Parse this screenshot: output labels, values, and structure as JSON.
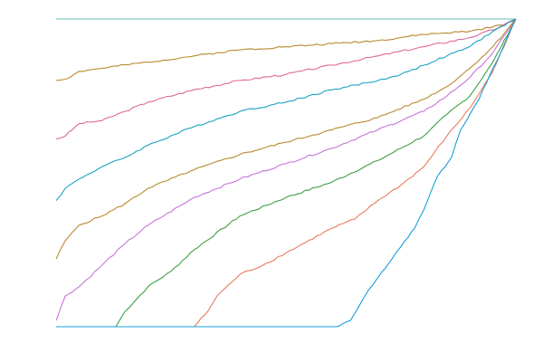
{
  "chart_data": {
    "type": "line",
    "title": "",
    "xlabel": "",
    "ylabel": "",
    "grid": false,
    "legend": "none",
    "xlim": [
      0,
      1
    ],
    "ylim": [
      0,
      1
    ],
    "series": [
      {
        "color": "#64BCB4",
        "points": [
          [
            0,
            1
          ],
          [
            0.25,
            1
          ],
          [
            0.5,
            1
          ],
          [
            0.75,
            1
          ],
          [
            0.98,
            1
          ],
          [
            1,
            1
          ]
        ]
      },
      {
        "color": "#B9892F",
        "points": [
          [
            0,
            0.8
          ],
          [
            0.03,
            0.81
          ],
          [
            0.05,
            0.83
          ],
          [
            0.1,
            0.84
          ],
          [
            0.2,
            0.86
          ],
          [
            0.3,
            0.88
          ],
          [
            0.4,
            0.9
          ],
          [
            0.5,
            0.91
          ],
          [
            0.6,
            0.92
          ],
          [
            0.7,
            0.93
          ],
          [
            0.8,
            0.95
          ],
          [
            0.9,
            0.96
          ],
          [
            0.97,
            0.98
          ],
          [
            1,
            1
          ]
        ]
      },
      {
        "color": "#E0679A",
        "points": [
          [
            0,
            0.61
          ],
          [
            0.02,
            0.62
          ],
          [
            0.05,
            0.66
          ],
          [
            0.1,
            0.67
          ],
          [
            0.15,
            0.7
          ],
          [
            0.2,
            0.73
          ],
          [
            0.3,
            0.77
          ],
          [
            0.4,
            0.8
          ],
          [
            0.5,
            0.82
          ],
          [
            0.6,
            0.85
          ],
          [
            0.7,
            0.88
          ],
          [
            0.8,
            0.91
          ],
          [
            0.9,
            0.94
          ],
          [
            0.96,
            0.97
          ],
          [
            1,
            1
          ]
        ]
      },
      {
        "color": "#19A2C2",
        "points": [
          [
            0,
            0.41
          ],
          [
            0.02,
            0.45
          ],
          [
            0.05,
            0.48
          ],
          [
            0.1,
            0.52
          ],
          [
            0.15,
            0.55
          ],
          [
            0.2,
            0.59
          ],
          [
            0.3,
            0.65
          ],
          [
            0.4,
            0.7
          ],
          [
            0.5,
            0.73
          ],
          [
            0.6,
            0.77
          ],
          [
            0.7,
            0.8
          ],
          [
            0.75,
            0.82
          ],
          [
            0.8,
            0.85
          ],
          [
            0.85,
            0.88
          ],
          [
            0.9,
            0.91
          ],
          [
            0.95,
            0.96
          ],
          [
            1,
            1
          ]
        ]
      },
      {
        "color": "#B9892F",
        "points": [
          [
            0,
            0.22
          ],
          [
            0.02,
            0.28
          ],
          [
            0.05,
            0.33
          ],
          [
            0.1,
            0.36
          ],
          [
            0.15,
            0.4
          ],
          [
            0.2,
            0.45
          ],
          [
            0.3,
            0.51
          ],
          [
            0.4,
            0.56
          ],
          [
            0.5,
            0.6
          ],
          [
            0.6,
            0.64
          ],
          [
            0.7,
            0.68
          ],
          [
            0.8,
            0.74
          ],
          [
            0.85,
            0.78
          ],
          [
            0.9,
            0.84
          ],
          [
            0.95,
            0.91
          ],
          [
            1,
            1
          ]
        ]
      },
      {
        "color": "#C674DA",
        "points": [
          [
            0,
            0.02
          ],
          [
            0.02,
            0.1
          ],
          [
            0.05,
            0.13
          ],
          [
            0.1,
            0.2
          ],
          [
            0.15,
            0.27
          ],
          [
            0.2,
            0.33
          ],
          [
            0.3,
            0.42
          ],
          [
            0.4,
            0.48
          ],
          [
            0.5,
            0.53
          ],
          [
            0.6,
            0.58
          ],
          [
            0.7,
            0.64
          ],
          [
            0.8,
            0.7
          ],
          [
            0.85,
            0.75
          ],
          [
            0.9,
            0.81
          ],
          [
            0.95,
            0.89
          ],
          [
            1,
            1
          ]
        ]
      },
      {
        "color": "#3BA047",
        "points": [
          [
            0,
            0
          ],
          [
            0.13,
            0
          ],
          [
            0.15,
            0.05
          ],
          [
            0.2,
            0.13
          ],
          [
            0.25,
            0.18
          ],
          [
            0.3,
            0.25
          ],
          [
            0.4,
            0.36
          ],
          [
            0.5,
            0.42
          ],
          [
            0.6,
            0.47
          ],
          [
            0.7,
            0.54
          ],
          [
            0.8,
            0.62
          ],
          [
            0.85,
            0.69
          ],
          [
            0.9,
            0.75
          ],
          [
            0.95,
            0.86
          ],
          [
            1,
            1
          ]
        ]
      },
      {
        "color": "#EA7A5E",
        "points": [
          [
            0,
            0
          ],
          [
            0.3,
            0
          ],
          [
            0.33,
            0.05
          ],
          [
            0.35,
            0.1
          ],
          [
            0.4,
            0.17
          ],
          [
            0.45,
            0.2
          ],
          [
            0.5,
            0.24
          ],
          [
            0.6,
            0.32
          ],
          [
            0.65,
            0.35
          ],
          [
            0.7,
            0.41
          ],
          [
            0.75,
            0.46
          ],
          [
            0.8,
            0.52
          ],
          [
            0.85,
            0.62
          ],
          [
            0.9,
            0.71
          ],
          [
            0.95,
            0.83
          ],
          [
            1,
            1
          ]
        ]
      },
      {
        "color": "#169FD8",
        "points": [
          [
            0,
            0
          ],
          [
            0.61,
            0
          ],
          [
            0.64,
            0.02
          ],
          [
            0.66,
            0.07
          ],
          [
            0.68,
            0.12
          ],
          [
            0.7,
            0.16
          ],
          [
            0.75,
            0.26
          ],
          [
            0.78,
            0.32
          ],
          [
            0.8,
            0.38
          ],
          [
            0.83,
            0.49
          ],
          [
            0.86,
            0.55
          ],
          [
            0.88,
            0.64
          ],
          [
            0.9,
            0.69
          ],
          [
            0.92,
            0.74
          ],
          [
            0.95,
            0.84
          ],
          [
            0.97,
            0.9
          ],
          [
            1,
            1
          ]
        ]
      }
    ]
  }
}
